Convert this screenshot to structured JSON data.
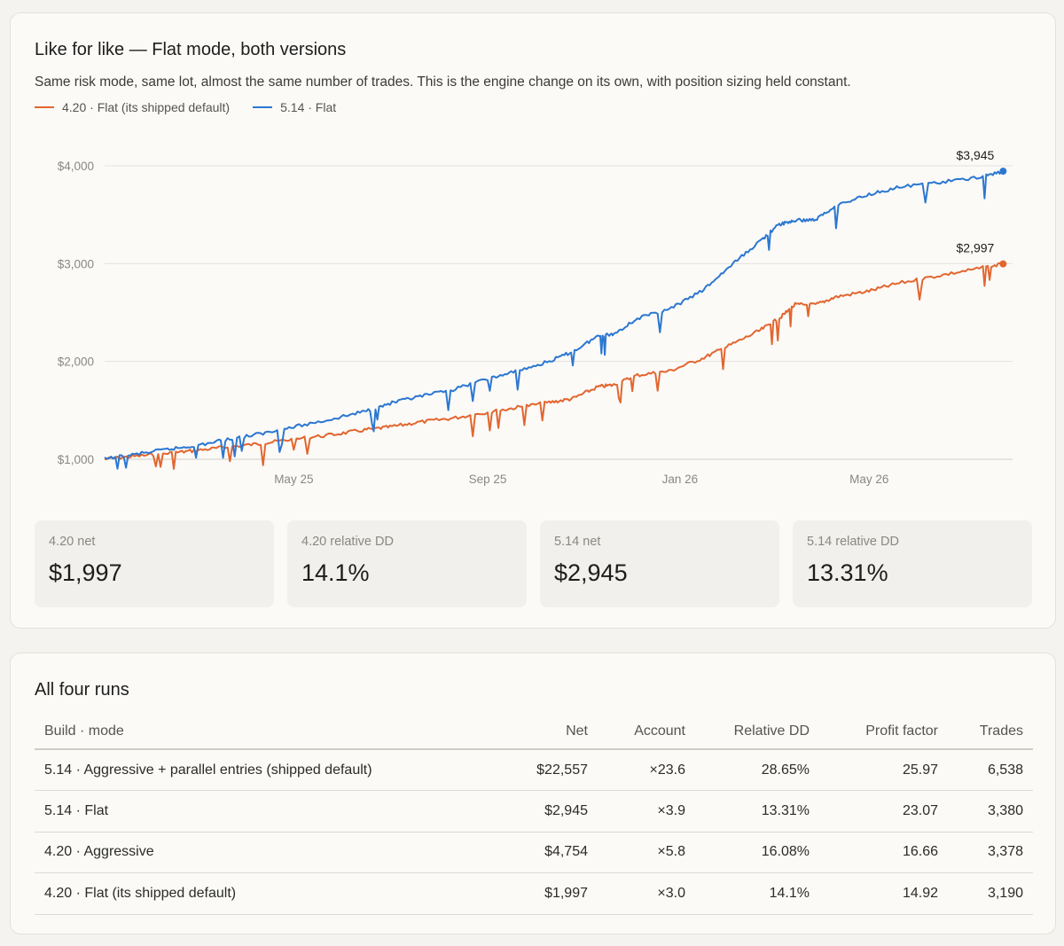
{
  "like_card": {
    "title": "Like for like — Flat mode, both versions",
    "subtitle": "Same risk mode, same lot, almost the same number of trades. This is the engine change on its own, with position sizing held constant.",
    "stats": [
      {
        "label": "4.20 net",
        "value": "$1,997"
      },
      {
        "label": "4.20 relative DD",
        "value": "14.1%"
      },
      {
        "label": "5.14 net",
        "value": "$2,945"
      },
      {
        "label": "5.14 relative DD",
        "value": "13.31%"
      }
    ]
  },
  "colors": {
    "orange": "#e2662f",
    "blue": "#2c77d1"
  },
  "chart_data": {
    "type": "line",
    "x_axis": {
      "type": "date",
      "range": [
        "2025-01-01",
        "2026-07-31"
      ],
      "tick_labels": [
        "May 25",
        "Sep 25",
        "Jan 26",
        "May 26"
      ],
      "tick_dates": [
        "2025-05-01",
        "2025-09-01",
        "2026-01-01",
        "2026-05-01"
      ]
    },
    "y_axis": {
      "range": [
        1000,
        4000
      ],
      "tick_labels": [
        "$4,000",
        "$3,000",
        "$2,000",
        "$1,000"
      ],
      "tick_values": [
        4000,
        3000,
        2000,
        1000
      ]
    },
    "grid": true,
    "legend": "top-left",
    "series": [
      {
        "name": "4.20 · Flat (its shipped default)",
        "color": "#e2662f",
        "end_label": "$2,997",
        "points": [
          [
            "2025-01-01",
            1000
          ],
          [
            "2025-01-20",
            1030
          ],
          [
            "2025-02-10",
            1060
          ],
          [
            "2025-02-28",
            1090
          ],
          [
            "2025-03-20",
            1125
          ],
          [
            "2025-04-10",
            1160
          ],
          [
            "2025-05-01",
            1205
          ],
          [
            "2025-05-25",
            1250
          ],
          [
            "2025-06-15",
            1300
          ],
          [
            "2025-07-01",
            1330
          ],
          [
            "2025-07-20",
            1380
          ],
          [
            "2025-08-10",
            1420
          ],
          [
            "2025-09-01",
            1480
          ],
          [
            "2025-09-20",
            1530
          ],
          [
            "2025-10-10",
            1580
          ],
          [
            "2025-10-25",
            1620
          ],
          [
            "2025-11-10",
            1740
          ],
          [
            "2025-11-20",
            1760
          ],
          [
            "2025-12-05",
            1860
          ],
          [
            "2025-12-25",
            1900
          ],
          [
            "2026-01-15",
            2030
          ],
          [
            "2026-02-01",
            2160
          ],
          [
            "2026-02-20",
            2310
          ],
          [
            "2026-03-05",
            2440
          ],
          [
            "2026-03-15",
            2580
          ],
          [
            "2026-03-28",
            2580
          ],
          [
            "2026-04-10",
            2660
          ],
          [
            "2026-05-01",
            2720
          ],
          [
            "2026-05-20",
            2800
          ],
          [
            "2026-06-15",
            2880
          ],
          [
            "2026-07-10",
            2950
          ],
          [
            "2026-07-25",
            2997
          ]
        ]
      },
      {
        "name": "5.14 · Flat",
        "color": "#2c77d1",
        "end_label": "$3,945",
        "points": [
          [
            "2025-01-01",
            1000
          ],
          [
            "2025-01-20",
            1050
          ],
          [
            "2025-02-10",
            1100
          ],
          [
            "2025-02-28",
            1140
          ],
          [
            "2025-03-20",
            1200
          ],
          [
            "2025-04-10",
            1260
          ],
          [
            "2025-05-01",
            1330
          ],
          [
            "2025-05-25",
            1410
          ],
          [
            "2025-06-15",
            1490
          ],
          [
            "2025-07-01",
            1570
          ],
          [
            "2025-07-20",
            1640
          ],
          [
            "2025-08-10",
            1710
          ],
          [
            "2025-09-01",
            1820
          ],
          [
            "2025-09-20",
            1900
          ],
          [
            "2025-10-10",
            2000
          ],
          [
            "2025-10-25",
            2100
          ],
          [
            "2025-11-10",
            2260
          ],
          [
            "2025-11-20",
            2280
          ],
          [
            "2025-12-05",
            2440
          ],
          [
            "2025-12-25",
            2530
          ],
          [
            "2026-01-15",
            2720
          ],
          [
            "2026-02-01",
            2960
          ],
          [
            "2026-02-20",
            3220
          ],
          [
            "2026-03-05",
            3400
          ],
          [
            "2026-03-15",
            3440
          ],
          [
            "2026-03-28",
            3450
          ],
          [
            "2026-04-10",
            3590
          ],
          [
            "2026-05-01",
            3710
          ],
          [
            "2026-05-20",
            3780
          ],
          [
            "2026-06-15",
            3830
          ],
          [
            "2026-07-10",
            3880
          ],
          [
            "2026-07-25",
            3945
          ]
        ]
      }
    ]
  },
  "runs_card": {
    "title": "All four runs",
    "columns": [
      "Build · mode",
      "Net",
      "Account",
      "Relative DD",
      "Profit factor",
      "Trades"
    ],
    "rows": [
      [
        "5.14 · Aggressive + parallel entries (shipped default)",
        "$22,557",
        "×23.6",
        "28.65%",
        "25.97",
        "6,538"
      ],
      [
        "5.14 · Flat",
        "$2,945",
        "×3.9",
        "13.31%",
        "23.07",
        "3,380"
      ],
      [
        "4.20 · Aggressive",
        "$4,754",
        "×5.8",
        "16.08%",
        "16.66",
        "3,378"
      ],
      [
        "4.20 · Flat (its shipped default)",
        "$1,997",
        "×3.0",
        "14.1%",
        "14.92",
        "3,190"
      ]
    ]
  }
}
